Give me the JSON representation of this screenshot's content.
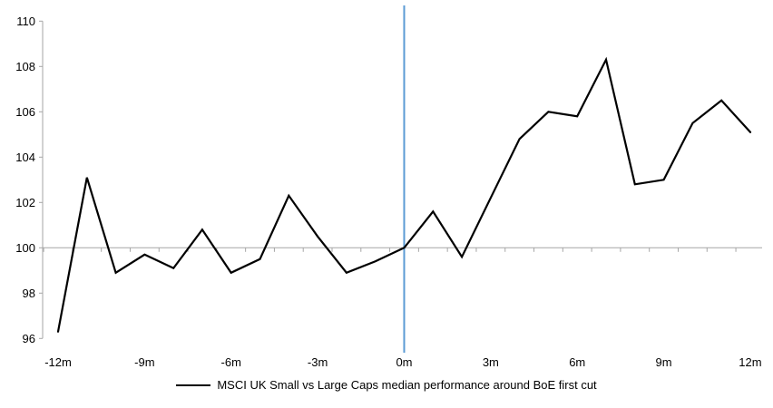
{
  "chart_data": {
    "type": "line",
    "title": "",
    "x": [
      -12,
      -11,
      -10,
      -9,
      -8,
      -7,
      -6,
      -5,
      -4,
      -3,
      -2,
      -1,
      0,
      1,
      2,
      3,
      4,
      5,
      6,
      7,
      8,
      9,
      10,
      11,
      12
    ],
    "series": [
      {
        "name": "MSCI UK Small vs Large Caps median performance around BoE first cut",
        "color": "#000000",
        "values": [
          96.3,
          103.1,
          98.9,
          99.7,
          99.1,
          100.8,
          98.9,
          99.5,
          102.3,
          100.5,
          98.9,
          99.4,
          100.0,
          101.6,
          99.6,
          102.2,
          104.8,
          106.0,
          105.8,
          108.3,
          102.8,
          103.0,
          105.5,
          106.5,
          105.1
        ]
      }
    ],
    "xlim": [
      -12,
      12
    ],
    "ylim": [
      96,
      110
    ],
    "y_ticks": [
      96,
      98,
      100,
      102,
      104,
      106,
      108,
      110
    ],
    "x_ticks": [
      {
        "pos": -12,
        "label": "-12m"
      },
      {
        "pos": -9,
        "label": "-9m"
      },
      {
        "pos": -6,
        "label": "-6m"
      },
      {
        "pos": -3,
        "label": "-3m"
      },
      {
        "pos": 0,
        "label": "0m"
      },
      {
        "pos": 3,
        "label": "3m"
      },
      {
        "pos": 6,
        "label": "6m"
      },
      {
        "pos": 9,
        "label": "9m"
      },
      {
        "pos": 12,
        "label": "12m"
      }
    ],
    "baseline": {
      "y": 100,
      "color": "#A6A6A6"
    },
    "event_line": {
      "x": 0,
      "color": "#5B9BD5"
    },
    "axis_color": "#A6A6A6",
    "text_color": "#000000",
    "grid": "off",
    "legend_position": "bottom"
  }
}
